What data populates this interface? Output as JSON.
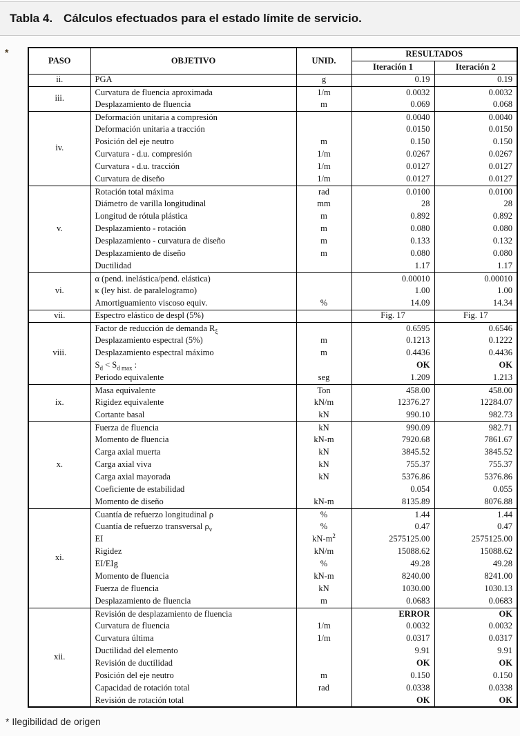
{
  "caption": {
    "label": "Tabla 4.",
    "text": "Cálculos efectuados para el estado límite de servicio."
  },
  "margin_marker": "*",
  "footnote": "* Ilegibilidad de origen",
  "colors": {
    "banner_bg": "#f2f2f2",
    "banner_border": "#c9c9c9",
    "table_border": "#000000",
    "page_bg": "#fbfbfb",
    "error_ok_text": "#111111"
  },
  "table": {
    "headers": {
      "paso": "PASO",
      "objetivo": "OBJETIVO",
      "unid": "UNID.",
      "resultados": "RESULTADOS",
      "iteracion1": "Iteración 1",
      "iteracion2": "Iteración 2"
    },
    "groups": [
      {
        "paso": "ii.",
        "rows": [
          {
            "objetivo": "PGA",
            "unid": "g",
            "it1": "0.19",
            "it2": "0.19"
          }
        ]
      },
      {
        "paso": "iii.",
        "rows": [
          {
            "objetivo": "Curvatura de fluencia aproximada",
            "unid": "1/m",
            "it1": "0.0032",
            "it2": "0.0032"
          },
          {
            "objetivo": "Desplazamiento de fluencia",
            "unid": "m",
            "it1": "0.069",
            "it2": "0.068"
          }
        ]
      },
      {
        "paso": "iv.",
        "rows": [
          {
            "objetivo": "Deformación unitaria a compresión",
            "unid": "",
            "it1": "0.0040",
            "it2": "0.0040"
          },
          {
            "objetivo": "Deformación unitaria a tracción",
            "unid": "",
            "it1": "0.0150",
            "it2": "0.0150"
          },
          {
            "objetivo": "Posición del eje neutro",
            "unid": "m",
            "it1": "0.150",
            "it2": "0.150"
          },
          {
            "objetivo": "Curvatura - d.u. compresión",
            "unid": "1/m",
            "it1": "0.0267",
            "it2": "0.0267"
          },
          {
            "objetivo": "Curvatura - d.u. tracción",
            "unid": "1/m",
            "it1": "0.0127",
            "it2": "0.0127"
          },
          {
            "objetivo": "Curvatura de diseño",
            "unid": "1/m",
            "it1": "0.0127",
            "it2": "0.0127"
          }
        ]
      },
      {
        "paso": "v.",
        "rows": [
          {
            "objetivo": "Rotación total máxima",
            "unid": "rad",
            "it1": "0.0100",
            "it2": "0.0100"
          },
          {
            "objetivo": "Diámetro de varilla longitudinal",
            "unid": "mm",
            "it1": "28",
            "it2": "28"
          },
          {
            "objetivo": "Longitud de rótula plástica",
            "unid": "m",
            "it1": "0.892",
            "it2": "0.892"
          },
          {
            "objetivo": "Desplazamiento - rotación",
            "unid": "m",
            "it1": "0.080",
            "it2": "0.080"
          },
          {
            "objetivo": "Desplazamiento - curvatura de diseño",
            "unid": "m",
            "it1": "0.133",
            "it2": "0.132"
          },
          {
            "objetivo": "Desplazamiento de diseño",
            "unid": "m",
            "it1": "0.080",
            "it2": "0.080"
          },
          {
            "objetivo": "Ductilidad",
            "unid": "",
            "it1": "1.17",
            "it2": "1.17"
          }
        ]
      },
      {
        "paso": "vi.",
        "rows": [
          {
            "objetivo": "α (pend. inelástica/pend. elástica)",
            "unid": "",
            "it1": "0.00010",
            "it2": "0.00010"
          },
          {
            "objetivo": "κ (ley hist. de paralelogramo)",
            "unid": "",
            "it1": "1.00",
            "it2": "1.00"
          },
          {
            "objetivo": "Amortiguamiento viscoso equiv.",
            "unid": "%",
            "it1": "14.09",
            "it2": "14.34"
          }
        ]
      },
      {
        "paso": "vii.",
        "rows": [
          {
            "objetivo": "Espectro elástico de despl (5%)",
            "unid": "",
            "it1": "Fig. 17",
            "it2": "Fig. 17",
            "vcenter": true
          }
        ]
      },
      {
        "paso": "viii.",
        "rows": [
          {
            "objetivo": [
              {
                "text": "Factor de reducción de demanda R"
              },
              {
                "text": "ξ",
                "style": "sub"
              }
            ],
            "unid": "",
            "it1": "0.6595",
            "it2": "0.6546"
          },
          {
            "objetivo": "Desplazamiento espectral (5%)",
            "unid": "m",
            "it1": "0.1213",
            "it2": "0.1222"
          },
          {
            "objetivo": "Desplazamiento espectral máximo",
            "unid": "m",
            "it1": "0.4436",
            "it2": "0.4436"
          },
          {
            "objetivo": [
              {
                "text": "S"
              },
              {
                "text": "d",
                "style": "sub"
              },
              {
                "text": " < S"
              },
              {
                "text": "d max",
                "style": "sub"
              },
              {
                "text": " :"
              }
            ],
            "unid": "",
            "it1": "OK",
            "it2": "OK",
            "vbold": true
          },
          {
            "objetivo": "Periodo equivalente",
            "unid": "seg",
            "it1": "1.209",
            "it2": "1.213"
          }
        ]
      },
      {
        "paso": "ix.",
        "rows": [
          {
            "objetivo": "Masa equivalente",
            "unid": "Ton",
            "it1": "458.00",
            "it2": "458.00"
          },
          {
            "objetivo": "Rigidez equivalente",
            "unid": "kN/m",
            "it1": "12376.27",
            "it2": "12284.07"
          },
          {
            "objetivo": "Cortante basal",
            "unid": "kN",
            "it1": "990.10",
            "it2": "982.73"
          }
        ]
      },
      {
        "paso": "x.",
        "rows": [
          {
            "objetivo": "Fuerza de fluencia",
            "unid": "kN",
            "it1": "990.09",
            "it2": "982.71"
          },
          {
            "objetivo": "Momento de fluencia",
            "unid": "kN-m",
            "it1": "7920.68",
            "it2": "7861.67"
          },
          {
            "objetivo": "Carga axial muerta",
            "unid": "kN",
            "it1": "3845.52",
            "it2": "3845.52"
          },
          {
            "objetivo": "Carga axial viva",
            "unid": "kN",
            "it1": "755.37",
            "it2": "755.37"
          },
          {
            "objetivo": "Carga axial mayorada",
            "unid": "kN",
            "it1": "5376.86",
            "it2": "5376.86"
          },
          {
            "objetivo": "Coeficiente de estabilidad",
            "unid": "",
            "it1": "0.054",
            "it2": "0.055"
          },
          {
            "objetivo": "Momento de diseño",
            "unid": "kN-m",
            "it1": "8135.89",
            "it2": "8076.88"
          }
        ]
      },
      {
        "paso": "xi.",
        "rows": [
          {
            "objetivo": "Cuantía de refuerzo longitudinal ρ",
            "unid": "%",
            "it1": "1.44",
            "it2": "1.44"
          },
          {
            "objetivo": [
              {
                "text": "Cuantía de refuerzo transversal ρ"
              },
              {
                "text": "v",
                "style": "sub"
              }
            ],
            "unid": "%",
            "it1": "0.47",
            "it2": "0.47"
          },
          {
            "objetivo": "EI",
            "unid": [
              {
                "text": "kN-m"
              },
              {
                "text": "2",
                "style": "sup"
              }
            ],
            "it1": "2575125.00",
            "it2": "2575125.00"
          },
          {
            "objetivo": "Rigidez",
            "unid": "kN/m",
            "it1": "15088.62",
            "it2": "15088.62"
          },
          {
            "objetivo": "EI/EIg",
            "unid": "%",
            "it1": "49.28",
            "it2": "49.28"
          },
          {
            "objetivo": "Momento de fluencia",
            "unid": "kN-m",
            "it1": "8240.00",
            "it2": "8241.00"
          },
          {
            "objetivo": "Fuerza de fluencia",
            "unid": "kN",
            "it1": "1030.00",
            "it2": "1030.13"
          },
          {
            "objetivo": "Desplazamiento de fluencia",
            "unid": "m",
            "it1": "0.0683",
            "it2": "0.0683"
          }
        ]
      },
      {
        "paso": "xii.",
        "rows": [
          {
            "objetivo": "Revisión de desplazamiento de fluencia",
            "unid": "",
            "it1": "ERROR",
            "it2": "OK",
            "vbold": true
          },
          {
            "objetivo": "Curvatura de fluencia",
            "unid": "1/m",
            "it1": "0.0032",
            "it2": "0.0032"
          },
          {
            "objetivo": "Curvatura última",
            "unid": "1/m",
            "it1": "0.0317",
            "it2": "0.0317"
          },
          {
            "objetivo": "Ductilidad del elemento",
            "unid": "",
            "it1": "9.91",
            "it2": "9.91"
          },
          {
            "objetivo": "Revisión de ductilidad",
            "unid": "",
            "it1": "OK",
            "it2": "OK",
            "vbold": true
          },
          {
            "objetivo": "Posición del eje neutro",
            "unid": "m",
            "it1": "0.150",
            "it2": "0.150"
          },
          {
            "objetivo": "Capacidad de rotación total",
            "unid": "rad",
            "it1": "0.0338",
            "it2": "0.0338"
          },
          {
            "objetivo": "Revisión de rotación total",
            "unid": "",
            "it1": "OK",
            "it2": "OK",
            "vbold": true
          }
        ]
      }
    ]
  }
}
